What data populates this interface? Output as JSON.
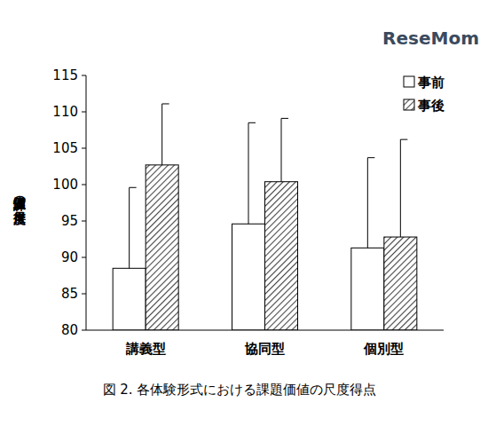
{
  "chart_data": {
    "type": "bar",
    "title": "図 2. 各体験形式における課題価値の尺度得点",
    "y_label": "課題価値の尺度得点",
    "annotations": [
      "ReseMom"
    ],
    "categories": [
      "講義型",
      "協同型",
      "個別型"
    ],
    "series": [
      {
        "name": "事前",
        "color": "#ffffff",
        "values": [
          88.5,
          94.6,
          91.3
        ],
        "errors": [
          11.1,
          13.9,
          12.4
        ]
      },
      {
        "name": "事後",
        "color": "#444444",
        "values": [
          102.7,
          100.4,
          92.8
        ],
        "errors": [
          8.4,
          8.7,
          13.4
        ]
      }
    ],
    "ylim": [
      80,
      115
    ],
    "yticks": [
      80,
      85,
      90,
      95,
      100,
      105,
      110,
      115
    ],
    "grid": false,
    "legend": "top-right"
  }
}
